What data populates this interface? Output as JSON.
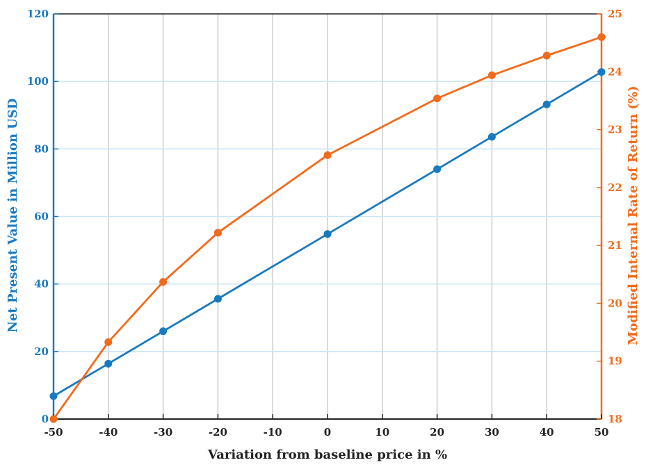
{
  "chart_data": {
    "type": "line",
    "xlabel": "Variation from baseline price in %",
    "ylabel_left": "Net Present Value in Million USD",
    "ylabel_right": "Modified Internal Rate of Return (%)",
    "x_ticks": [
      "-50",
      "-40",
      "-30",
      "-20",
      "-10",
      "0",
      "10",
      "20",
      "30",
      "40",
      "50"
    ],
    "y_left_ticks": [
      "0",
      "20",
      "40",
      "60",
      "80",
      "100",
      "120"
    ],
    "y_right_ticks": [
      "18",
      "19",
      "20",
      "21",
      "22",
      "23",
      "24",
      "25"
    ],
    "xlim": [
      -50,
      50
    ],
    "ylim_left": [
      0,
      120
    ],
    "ylim_right": [
      18,
      25
    ],
    "grid": {
      "x": true,
      "y": true
    },
    "colors": {
      "left": "#1a7abf",
      "right": "#f26a1b",
      "grid_x": "#d0d0d0",
      "grid_y": "#cde6f5",
      "axis": "#222222"
    },
    "series": [
      {
        "axis": "left",
        "x": [
          -50,
          -40,
          -30,
          -20,
          0,
          20,
          30,
          40,
          50
        ],
        "values": [
          6.8,
          16.4,
          26.0,
          35.6,
          54.8,
          74.0,
          83.6,
          93.2,
          102.8
        ]
      },
      {
        "axis": "right",
        "x": [
          -50,
          -40,
          -30,
          -20,
          0,
          20,
          30,
          40,
          50
        ],
        "values": [
          18.0,
          19.33,
          20.37,
          21.22,
          22.56,
          23.54,
          23.94,
          24.28,
          24.6
        ]
      }
    ]
  }
}
